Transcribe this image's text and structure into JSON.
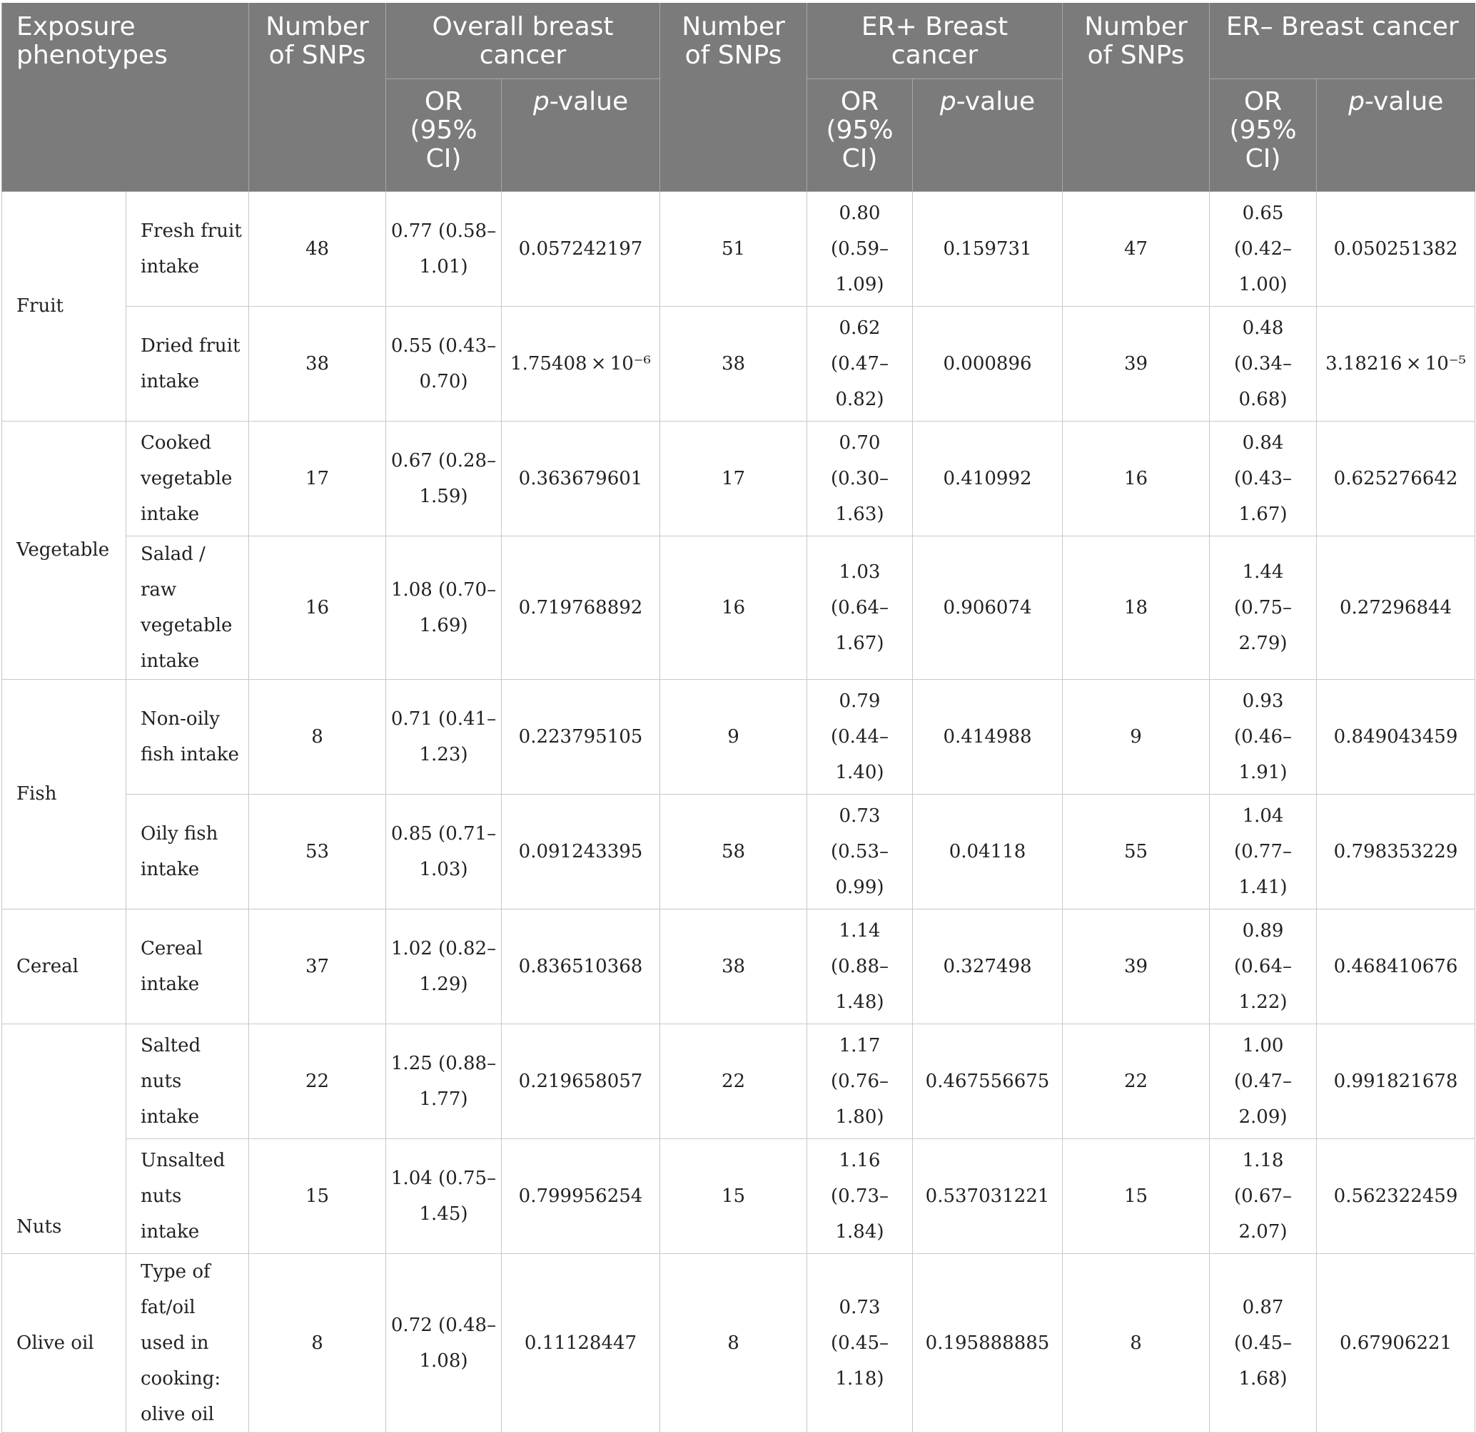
{
  "header": {
    "exposure": "Exposure phenotypes",
    "n_snps_1": "Number of SNPs",
    "overall": "Overall breast cancer",
    "n_snps_2": "Number of SNPs",
    "er_pos": "ER+ Breast cancer",
    "n_snps_3": "Number of SNPs",
    "er_neg": "ER– Breast cancer",
    "or_label": "OR (95% CI)",
    "p_italic": "p",
    "p_rest": "-value"
  },
  "rows": [
    {
      "group": "Fruit",
      "exposure": "Fresh fruit intake",
      "o_n": "48",
      "o_or": "0.77 (0.58–1.01)",
      "o_p": "0.057242197",
      "p_n": "51",
      "p_or": "0.80 (0.59–1.09)",
      "p_p": "0.159731",
      "n_n": "47",
      "n_or": "0.65 (0.42–1.00)",
      "n_p": "0.050251382"
    },
    {
      "exposure": "Dried fruit intake",
      "o_n": "38",
      "o_or": "0.55 (0.43–0.70)",
      "o_p": "1.75408 × 10⁻⁶",
      "p_n": "38",
      "p_or": "0.62 (0.47–0.82)",
      "p_p": "0.000896",
      "n_n": "39",
      "n_or": "0.48 (0.34–0.68)",
      "n_p": "3.18216 × 10⁻⁵"
    },
    {
      "group": "Vegetable",
      "exposure": "Cooked vegetable intake",
      "o_n": "17",
      "o_or": "0.67 (0.28–1.59)",
      "o_p": "0.363679601",
      "p_n": "17",
      "p_or": "0.70 (0.30–1.63)",
      "p_p": "0.410992",
      "n_n": "16",
      "n_or": "0.84 (0.43–1.67)",
      "n_p": "0.625276642"
    },
    {
      "exposure": "Salad / raw vegetable intake",
      "o_n": "16",
      "o_or": "1.08 (0.70–1.69)",
      "o_p": "0.719768892",
      "p_n": "16",
      "p_or": "1.03 (0.64–1.67)",
      "p_p": "0.906074",
      "n_n": "18",
      "n_or": "1.44 (0.75–2.79)",
      "n_p": "0.27296844"
    },
    {
      "group": "Fish",
      "exposure": "Non-oily fish intake",
      "o_n": "8",
      "o_or": "0.71 (0.41–1.23)",
      "o_p": "0.223795105",
      "p_n": "9",
      "p_or": "0.79 (0.44–1.40)",
      "p_p": "0.414988",
      "n_n": "9",
      "n_or": "0.93 (0.46–1.91)",
      "n_p": "0.849043459"
    },
    {
      "exposure": "Oily fish intake",
      "o_n": "53",
      "o_or": "0.85 (0.71–1.03)",
      "o_p": "0.091243395",
      "p_n": "58",
      "p_or": "0.73 (0.53–0.99)",
      "p_p": "0.04118",
      "n_n": "55",
      "n_or": "1.04 (0.77–1.41)",
      "n_p": "0.798353229"
    },
    {
      "group": "Cereal",
      "exposure": "Cereal intake",
      "o_n": "37",
      "o_or": "1.02 (0.82–1.29)",
      "o_p": "0.836510368",
      "p_n": "38",
      "p_or": "1.14 (0.88–1.48)",
      "p_p": "0.327498",
      "n_n": "39",
      "n_or": "0.89 (0.64–1.22)",
      "n_p": "0.468410676"
    },
    {
      "group": "Nuts",
      "exposure": "Salted nuts intake",
      "o_n": "22",
      "o_or": "1.25 (0.88–1.77)",
      "o_p": "0.219658057",
      "p_n": "22",
      "p_or": "1.17 (0.76–1.80)",
      "p_p": "0.467556675",
      "n_n": "22",
      "n_or": "1.00 (0.47–2.09)",
      "n_p": "0.991821678"
    },
    {
      "exposure": "Unsalted nuts intake",
      "o_n": "15",
      "o_or": "1.04 (0.75–1.45)",
      "o_p": "0.799956254",
      "p_n": "15",
      "p_or": "1.16 (0.73–1.84)",
      "p_p": "0.537031221",
      "n_n": "15",
      "n_or": "1.18 (0.67–2.07)",
      "n_p": "0.562322459"
    },
    {
      "group": "Olive oil",
      "exposure": "Type of fat/oil used in cooking: olive oil",
      "o_n": "8",
      "o_or": "0.72 (0.48–1.08)",
      "o_p": "0.11128447",
      "p_n": "8",
      "p_or": "0.73 (0.45–1.18)",
      "p_p": "0.195888885",
      "n_n": "8",
      "n_or": "0.87 (0.45–1.68)",
      "n_p": "0.67906221"
    }
  ]
}
